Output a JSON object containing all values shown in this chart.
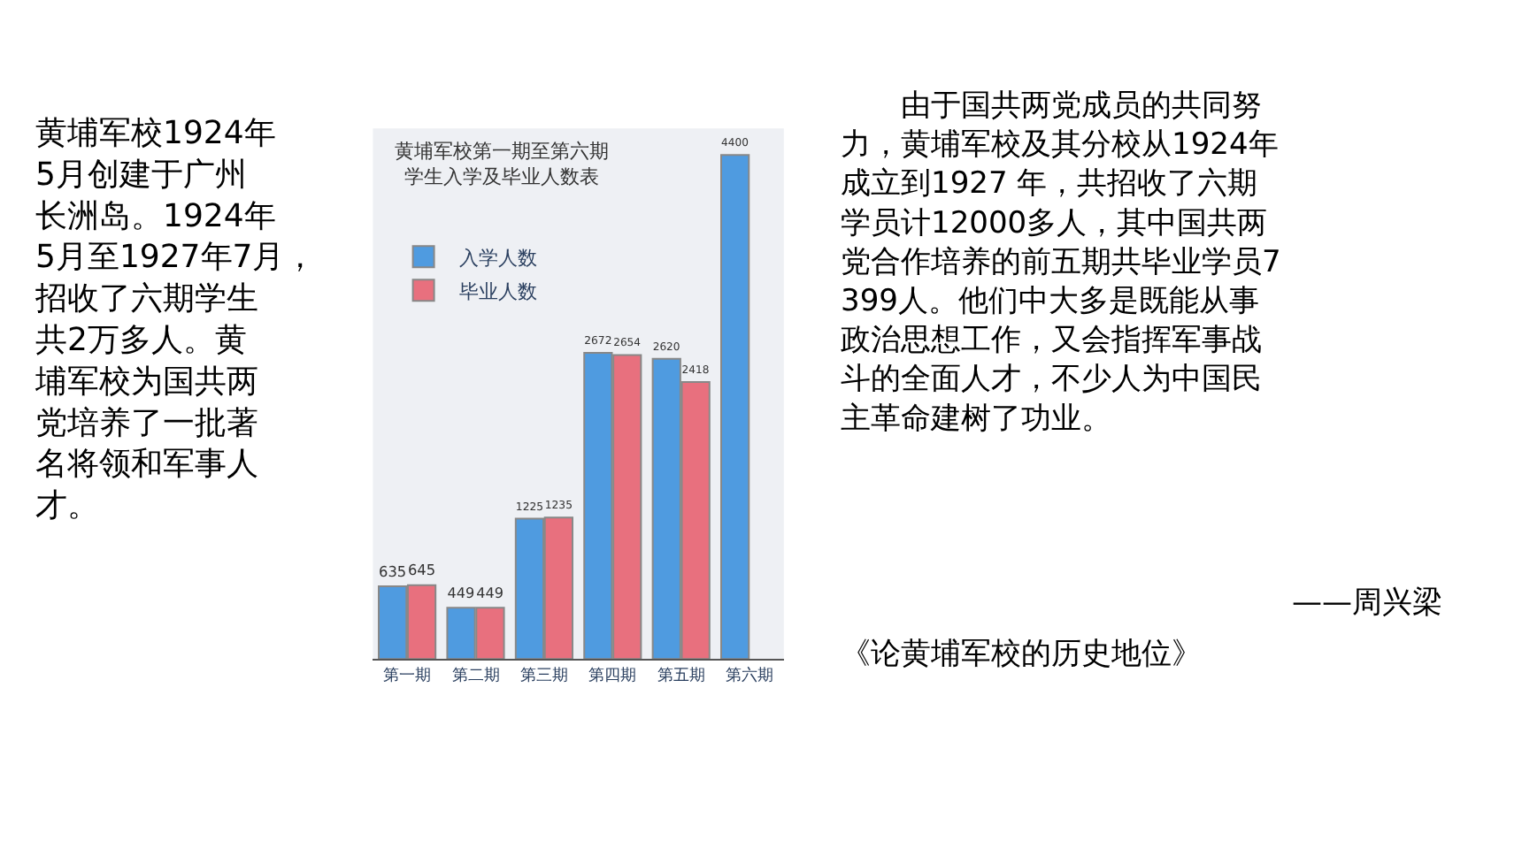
{
  "chart_data": {
    "type": "bar",
    "title": "黄埔军校第一期至第六期学生入学及毕业人数表",
    "categories": [
      "第一期",
      "第二期",
      "第三期",
      "第四期",
      "第五期",
      "第六期"
    ],
    "series": [
      {
        "name": "入学人数",
        "color": "#4f9be0",
        "values": [
          635,
          449,
          1225,
          2672,
          2620,
          4400
        ]
      },
      {
        "name": "毕业人数",
        "color": "#e8707e",
        "values": [
          645,
          449,
          1235,
          2654,
          2418,
          null
        ]
      }
    ],
    "data_labels": true,
    "legend": "top left",
    "grid": false,
    "tick_labels": "x",
    "annotations": [
      "黄埔军校1924年5月创建于广州长洲岛。1924年5月至1927年7月，招收了六期学生共2万多人。黄埔军校为国共两党培养了一批著名将领和军事人才。",
      "由于国共两党成员的共同努力，黄埔军校及其分校从1924年成立到1927 年，共招收了六期学员计12000多人，其中国共两党合作培养的前五期共毕业学员7399人。他们中大多是既能从事政治思想工作，又会指挥军事战斗的全面人才，不少人为中国民主革命建树了功业。",
      "——周兴梁",
      "《论黄埔军校的历史地位》"
    ]
  }
}
